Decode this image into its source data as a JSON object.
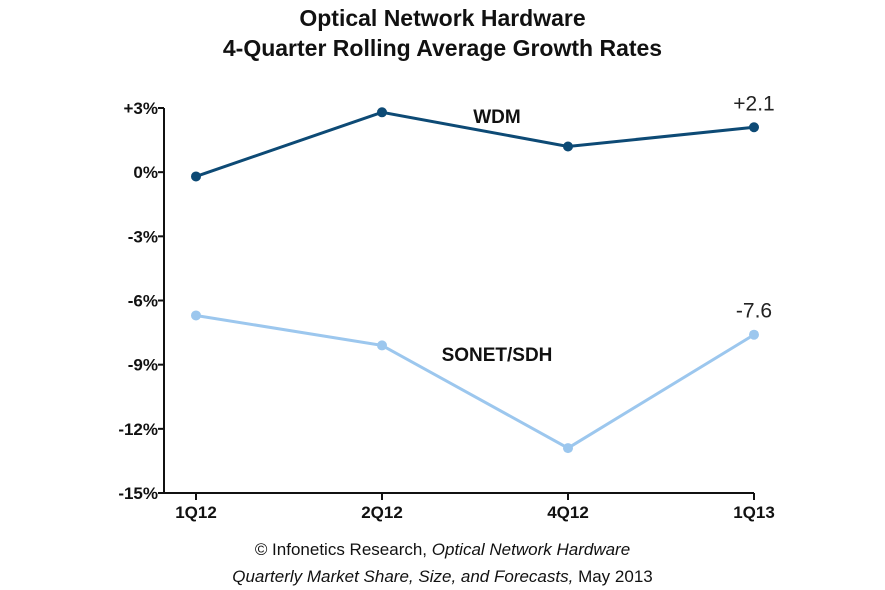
{
  "chart_data": {
    "type": "line",
    "title": [
      "Optical Network Hardware",
      "4-Quarter Rolling Average Growth Rates"
    ],
    "categories": [
      "1Q12",
      "2Q12",
      "4Q12",
      "1Q13"
    ],
    "ylim": [
      -15,
      3
    ],
    "yticks": [
      3,
      0,
      -3,
      -6,
      -9,
      -12,
      -15
    ],
    "ytick_labels": [
      "+3%",
      "0%",
      "-3%",
      "-6%",
      "-9%",
      "-12%",
      "-15%"
    ],
    "grid": false,
    "series": [
      {
        "name": "WDM",
        "color": "#0d4a75",
        "values": [
          -0.2,
          2.8,
          1.2,
          2.1
        ],
        "end_label": "+2.1"
      },
      {
        "name": "SONET/SDH",
        "color": "#9cc7ee",
        "values": [
          -6.7,
          -8.1,
          -12.9,
          -7.6
        ],
        "end_label": "-7.6"
      }
    ]
  },
  "source": {
    "line1_prefix": "© Infonetics Research, ",
    "line1_italic": "Optical Network Hardware",
    "line2_italic": "Quarterly Market Share, Size, and Forecasts,",
    "line2_suffix": " May 2013"
  }
}
